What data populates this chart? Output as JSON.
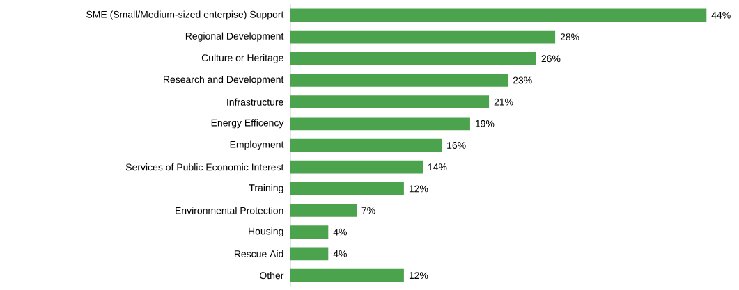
{
  "chart_data": {
    "type": "bar",
    "orientation": "horizontal",
    "color": "#4ba34e",
    "categories": [
      "SME (Small/Medium-sized enterpise) Support",
      "Regional Development",
      "Culture or Heritage",
      "Research and Development",
      "Infrastructure",
      "Energy Efficency",
      "Employment",
      "Services of Public Economic Interest",
      "Training",
      "Environmental Protection",
      "Housing",
      "Rescue Aid",
      "Other"
    ],
    "values": [
      44,
      28,
      26,
      23,
      21,
      19,
      16,
      14,
      12,
      7,
      4,
      4,
      12
    ],
    "value_labels": [
      "44%",
      "28%",
      "26%",
      "23%",
      "21%",
      "19%",
      "16%",
      "14%",
      "12%",
      "7%",
      "4%",
      "4%",
      "12%"
    ]
  }
}
